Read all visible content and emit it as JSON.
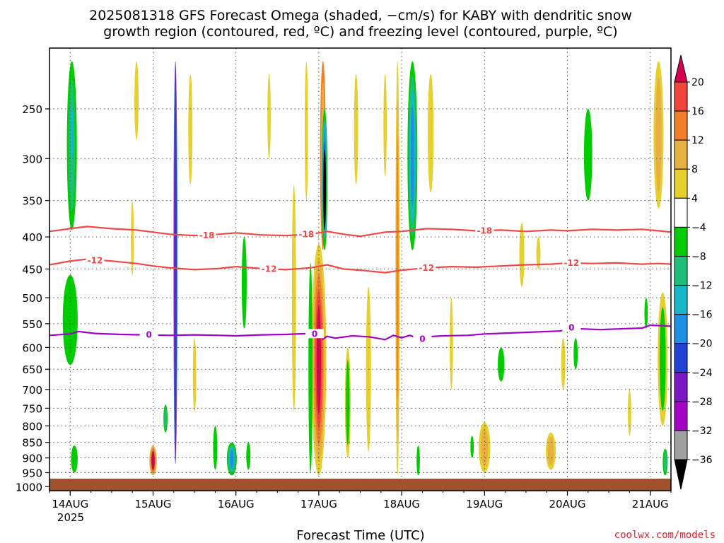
{
  "chart_data": {
    "type": "heatmap",
    "title_line1": "2025081318 GFS Forecast Omega (shaded, −cm/s) for KABY with dendritic snow",
    "title_line2": "growth region (contoured, red, ºC) and freezing level (contoured, purple, ºC)",
    "xlabel": "Forecast Time (UTC)",
    "credit": "coolwx.com/models",
    "x_ticks": [
      "14AUG",
      "15AUG",
      "16AUG",
      "17AUG",
      "18AUG",
      "19AUG",
      "20AUG",
      "21AUG"
    ],
    "x_tick_sub": "2025",
    "y_ticks": [
      250,
      300,
      350,
      400,
      450,
      500,
      550,
      600,
      650,
      700,
      750,
      800,
      850,
      900,
      950,
      1000
    ],
    "x_range_days": [
      13.75,
      21.25
    ],
    "y_range_hpa": [
      200,
      1015
    ],
    "colorbar": {
      "labels": [
        "20",
        "16",
        "12",
        "8",
        "4",
        "−4",
        "−8",
        "−12",
        "−16",
        "−20",
        "−24",
        "−28",
        "−32",
        "−36"
      ],
      "colors": [
        "#d6004f",
        "#f0443c",
        "#f07f28",
        "#e8b040",
        "#e6d02e",
        "#ffffff",
        "#00cc00",
        "#1cbf7a",
        "#14b8c8",
        "#1e8fe6",
        "#2040d8",
        "#7a18c8",
        "#a500c8",
        "#a0a0a0",
        "#000000"
      ]
    },
    "contours": {
      "dgz_color": "#f04848",
      "freezing_color": "#a000c8",
      "lines": [
        {
          "label": "-18",
          "kind": "dgz",
          "points": [
            [
              13.75,
              392
            ],
            [
              14.0,
              388
            ],
            [
              14.2,
              385
            ],
            [
              14.5,
              388
            ],
            [
              14.8,
              390
            ],
            [
              15.0,
              393
            ],
            [
              15.2,
              396
            ],
            [
              15.5,
              398
            ],
            [
              15.8,
              396
            ],
            [
              16.0,
              394
            ],
            [
              16.3,
              397
            ],
            [
              16.6,
              398
            ],
            [
              16.9,
              396
            ],
            [
              17.1,
              392
            ],
            [
              17.3,
              396
            ],
            [
              17.5,
              399
            ],
            [
              17.8,
              393
            ],
            [
              18.0,
              392
            ],
            [
              18.3,
              388
            ],
            [
              18.6,
              389
            ],
            [
              18.9,
              391
            ],
            [
              19.2,
              390
            ],
            [
              19.5,
              392
            ],
            [
              19.8,
              390
            ],
            [
              20.0,
              391
            ],
            [
              20.3,
              389
            ],
            [
              20.6,
              390
            ],
            [
              20.9,
              389
            ],
            [
              21.1,
              391
            ],
            [
              21.25,
              393
            ]
          ],
          "label_positions": [
            [
              15.65,
              398
            ],
            [
              16.85,
              396
            ],
            [
              19.0,
              391
            ]
          ]
        },
        {
          "label": "-12",
          "kind": "dgz",
          "points": [
            [
              13.75,
              443
            ],
            [
              14.0,
              437
            ],
            [
              14.2,
              434
            ],
            [
              14.5,
              437
            ],
            [
              14.8,
              441
            ],
            [
              15.0,
              445
            ],
            [
              15.2,
              448
            ],
            [
              15.5,
              451
            ],
            [
              15.8,
              449
            ],
            [
              16.0,
              446
            ],
            [
              16.3,
              449
            ],
            [
              16.6,
              451
            ],
            [
              16.9,
              448
            ],
            [
              17.1,
              443
            ],
            [
              17.3,
              450
            ],
            [
              17.5,
              452
            ],
            [
              17.8,
              456
            ],
            [
              18.0,
              452
            ],
            [
              18.3,
              448
            ],
            [
              18.6,
              446
            ],
            [
              18.9,
              447
            ],
            [
              19.2,
              445
            ],
            [
              19.5,
              443
            ],
            [
              19.8,
              442
            ],
            [
              20.0,
              440
            ],
            [
              20.3,
              441
            ],
            [
              20.6,
              440
            ],
            [
              20.9,
              442
            ],
            [
              21.1,
              441
            ],
            [
              21.25,
              442
            ]
          ],
          "label_positions": [
            [
              14.3,
              436
            ],
            [
              16.4,
              450
            ],
            [
              18.3,
              448
            ],
            [
              20.05,
              440
            ]
          ]
        },
        {
          "label": "0",
          "kind": "frz",
          "points": [
            [
              13.75,
              574
            ],
            [
              14.0,
              571
            ],
            [
              14.1,
              566
            ],
            [
              14.3,
              570
            ],
            [
              14.6,
              572
            ],
            [
              14.9,
              573
            ],
            [
              15.2,
              574
            ],
            [
              15.5,
              573
            ],
            [
              15.8,
              574
            ],
            [
              16.0,
              575
            ],
            [
              16.3,
              573
            ],
            [
              16.6,
              572
            ],
            [
              16.9,
              570
            ],
            [
              17.0,
              573
            ],
            [
              17.05,
              582
            ],
            [
              17.1,
              576
            ],
            [
              17.2,
              580
            ],
            [
              17.4,
              575
            ],
            [
              17.6,
              577
            ],
            [
              17.8,
              583
            ],
            [
              17.9,
              574
            ],
            [
              18.0,
              579
            ],
            [
              18.1,
              574
            ],
            [
              18.2,
              581
            ],
            [
              18.3,
              577
            ],
            [
              18.5,
              575
            ],
            [
              18.8,
              574
            ],
            [
              19.0,
              571
            ],
            [
              19.3,
              569
            ],
            [
              19.6,
              567
            ],
            [
              19.9,
              565
            ],
            [
              20.1,
              560
            ],
            [
              20.4,
              562
            ],
            [
              20.7,
              560
            ],
            [
              20.9,
              559
            ],
            [
              21.0,
              553
            ],
            [
              21.25,
              555
            ]
          ],
          "label_positions": [
            [
              14.95,
              573
            ],
            [
              16.95,
              571
            ],
            [
              18.25,
              582
            ],
            [
              20.05,
              558
            ]
          ]
        }
      ]
    },
    "omega_blobs": [
      {
        "x": 14.02,
        "y_top": 210,
        "y_bot": 390,
        "w": 0.12,
        "colors": [
          "#00cc00",
          "#1cbf7a"
        ]
      },
      {
        "x": 14.0,
        "y_top": 460,
        "y_bot": 640,
        "w": 0.18,
        "colors": [
          "#00cc00"
        ]
      },
      {
        "x": 14.05,
        "y_top": 860,
        "y_bot": 950,
        "w": 0.08,
        "colors": [
          "#00cc00"
        ]
      },
      {
        "x": 14.02,
        "y_top": 240,
        "y_bot": 310,
        "w": 0.06,
        "colors": [
          "#1cbf7a",
          "#14b8c8"
        ]
      },
      {
        "x": 15.0,
        "y_top": 860,
        "y_bot": 960,
        "w": 0.09,
        "colors": [
          "#e8b040",
          "#f07f28",
          "#d6004f"
        ]
      },
      {
        "x": 15.27,
        "y_top": 210,
        "y_bot": 920,
        "w": 0.05,
        "colors": [
          "#14b8c8",
          "#1e8fe6",
          "#2040d8"
        ]
      },
      {
        "x": 15.27,
        "y_top": 210,
        "y_bot": 920,
        "w": 0.02,
        "colors": [
          "#7a18c8"
        ]
      },
      {
        "x": 15.95,
        "y_top": 850,
        "y_bot": 960,
        "w": 0.12,
        "colors": [
          "#00cc00",
          "#1cbf7a",
          "#14b8c8",
          "#1e8fe6"
        ]
      },
      {
        "x": 17.0,
        "y_top": 410,
        "y_bot": 960,
        "w": 0.18,
        "colors": [
          "#e6d02e",
          "#e8b040",
          "#f07f28",
          "#f0443c",
          "#d6004f"
        ]
      },
      {
        "x": 17.05,
        "y_top": 210,
        "y_bot": 420,
        "w": 0.07,
        "colors": [
          "#f07f28",
          "#e8b040"
        ]
      },
      {
        "x": 17.07,
        "y_top": 250,
        "y_bot": 420,
        "w": 0.07,
        "colors": [
          "#00cc00",
          "#14b8c8",
          "#1e8fe6",
          "#2040d8"
        ]
      },
      {
        "x": 17.07,
        "y_top": 290,
        "y_bot": 390,
        "w": 0.03,
        "colors": [
          "#000000"
        ]
      },
      {
        "x": 18.13,
        "y_top": 210,
        "y_bot": 420,
        "w": 0.12,
        "colors": [
          "#00cc00",
          "#1cbf7a",
          "#14b8c8",
          "#1e8fe6"
        ]
      },
      {
        "x": 17.95,
        "y_top": 210,
        "y_bot": 960,
        "w": 0.05,
        "colors": [
          "#e6d02e",
          "#e8b040",
          "#f07f28"
        ]
      },
      {
        "x": 19.0,
        "y_top": 790,
        "y_bot": 950,
        "w": 0.14,
        "colors": [
          "#e6d02e",
          "#e8b040"
        ]
      },
      {
        "x": 19.8,
        "y_top": 820,
        "y_bot": 940,
        "w": 0.12,
        "colors": [
          "#e6d02e",
          "#e8b040"
        ]
      },
      {
        "x": 21.1,
        "y_top": 210,
        "y_bot": 360,
        "w": 0.12,
        "colors": [
          "#e6d02e",
          "#e8b040"
        ]
      },
      {
        "x": 21.15,
        "y_top": 490,
        "y_bot": 800,
        "w": 0.12,
        "colors": [
          "#e6d02e",
          "#00cc00"
        ]
      },
      {
        "x": 21.18,
        "y_top": 870,
        "y_bot": 960,
        "w": 0.06,
        "colors": [
          "#00cc00",
          "#1cbf7a"
        ]
      },
      {
        "x": 20.25,
        "y_top": 250,
        "y_bot": 350,
        "w": 0.1,
        "colors": [
          "#00cc00"
        ]
      },
      {
        "x": 19.2,
        "y_top": 600,
        "y_bot": 680,
        "w": 0.08,
        "colors": [
          "#00cc00"
        ]
      },
      {
        "x": 18.35,
        "y_top": 220,
        "y_bot": 340,
        "w": 0.07,
        "colors": [
          "#e6d02e"
        ]
      },
      {
        "x": 16.7,
        "y_top": 330,
        "y_bot": 760,
        "w": 0.05,
        "colors": [
          "#e6d02e"
        ]
      },
      {
        "x": 16.1,
        "y_top": 400,
        "y_bot": 560,
        "w": 0.06,
        "colors": [
          "#00cc00"
        ]
      },
      {
        "x": 17.35,
        "y_top": 600,
        "y_bot": 900,
        "w": 0.07,
        "colors": [
          "#e6d02e",
          "#00cc00"
        ]
      },
      {
        "x": 17.6,
        "y_top": 480,
        "y_bot": 880,
        "w": 0.06,
        "colors": [
          "#e6d02e"
        ]
      },
      {
        "x": 18.2,
        "y_top": 860,
        "y_bot": 960,
        "w": 0.04,
        "colors": [
          "#00cc00"
        ]
      },
      {
        "x": 14.8,
        "y_top": 210,
        "y_bot": 280,
        "w": 0.05,
        "colors": [
          "#e6d02e"
        ]
      },
      {
        "x": 15.15,
        "y_top": 740,
        "y_bot": 820,
        "w": 0.05,
        "colors": [
          "#00cc00",
          "#1cbf7a"
        ]
      },
      {
        "x": 15.5,
        "y_top": 580,
        "y_bot": 760,
        "w": 0.04,
        "colors": [
          "#e6d02e"
        ]
      },
      {
        "x": 15.75,
        "y_top": 800,
        "y_bot": 940,
        "w": 0.05,
        "colors": [
          "#00cc00"
        ]
      },
      {
        "x": 16.15,
        "y_top": 850,
        "y_bot": 940,
        "w": 0.05,
        "colors": [
          "#00cc00"
        ]
      },
      {
        "x": 16.85,
        "y_top": 210,
        "y_bot": 350,
        "w": 0.04,
        "colors": [
          "#e6d02e"
        ]
      },
      {
        "x": 16.9,
        "y_top": 440,
        "y_bot": 950,
        "w": 0.05,
        "colors": [
          "#00cc00"
        ]
      },
      {
        "x": 18.6,
        "y_top": 500,
        "y_bot": 700,
        "w": 0.04,
        "colors": [
          "#e6d02e"
        ]
      },
      {
        "x": 19.45,
        "y_top": 380,
        "y_bot": 480,
        "w": 0.06,
        "colors": [
          "#e6d02e"
        ]
      },
      {
        "x": 20.1,
        "y_top": 580,
        "y_bot": 650,
        "w": 0.05,
        "colors": [
          "#00cc00"
        ]
      },
      {
        "x": 19.95,
        "y_top": 580,
        "y_bot": 700,
        "w": 0.05,
        "colors": [
          "#e6d02e"
        ]
      },
      {
        "x": 20.75,
        "y_top": 700,
        "y_bot": 830,
        "w": 0.04,
        "colors": [
          "#e6d02e"
        ]
      },
      {
        "x": 19.65,
        "y_top": 400,
        "y_bot": 450,
        "w": 0.05,
        "colors": [
          "#e6d02e"
        ]
      },
      {
        "x": 14.75,
        "y_top": 350,
        "y_bot": 460,
        "w": 0.03,
        "colors": [
          "#e6d02e"
        ]
      },
      {
        "x": 17.45,
        "y_top": 220,
        "y_bot": 330,
        "w": 0.05,
        "colors": [
          "#e6d02e"
        ]
      },
      {
        "x": 17.8,
        "y_top": 220,
        "y_bot": 320,
        "w": 0.04,
        "colors": [
          "#e6d02e"
        ]
      },
      {
        "x": 16.4,
        "y_top": 220,
        "y_bot": 300,
        "w": 0.04,
        "colors": [
          "#e6d02e"
        ]
      },
      {
        "x": 15.45,
        "y_top": 220,
        "y_bot": 330,
        "w": 0.05,
        "colors": [
          "#e6d02e"
        ]
      },
      {
        "x": 18.85,
        "y_top": 830,
        "y_bot": 900,
        "w": 0.04,
        "colors": [
          "#00cc00"
        ]
      },
      {
        "x": 20.95,
        "y_top": 500,
        "y_bot": 560,
        "w": 0.04,
        "colors": [
          "#00cc00"
        ]
      }
    ],
    "ground_color": "#a0522d"
  }
}
